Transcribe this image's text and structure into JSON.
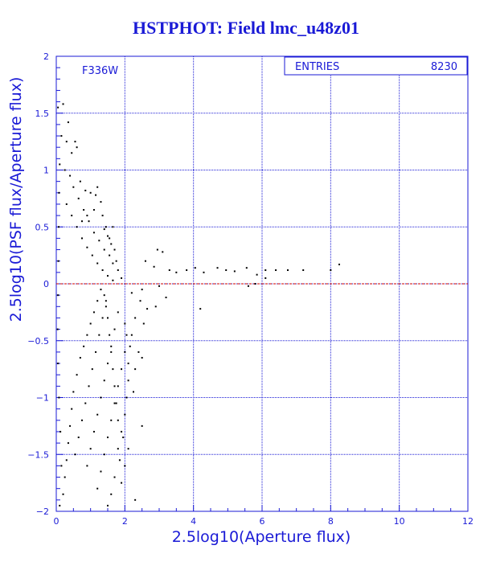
{
  "title": "HSTPHOT: Field lmc_u48z01",
  "chart_data": {
    "type": "scatter",
    "title": "HSTPHOT: Field lmc_u48z01",
    "xlabel": "2.5log10(Aperture flux)",
    "ylabel": "2.5log10(PSF flux/Aperture flux)",
    "xlim": [
      0,
      12
    ],
    "ylim": [
      -2,
      2
    ],
    "x_ticks": [
      "0",
      "2",
      "4",
      "6",
      "8",
      "10",
      "12"
    ],
    "y_ticks": [
      "-2",
      "-1.5",
      "-1",
      "-0.5",
      "0",
      "0.5",
      "1",
      "1.5",
      "2"
    ],
    "grid": true,
    "reference_line": {
      "y": 0,
      "color": "#cc0000",
      "style": "dashed"
    },
    "annotation": "F336W",
    "stats_box": {
      "label": "ENTRIES",
      "value": "8230"
    },
    "colors": {
      "axis": "#1a1ad6",
      "points": "#000000",
      "title": "#1a1ad6"
    },
    "points": [
      [
        0.05,
        1.55
      ],
      [
        0.2,
        1.58
      ],
      [
        0.35,
        1.42
      ],
      [
        0.15,
        1.3
      ],
      [
        0.3,
        1.25
      ],
      [
        0.45,
        1.15
      ],
      [
        0.1,
        1.05
      ],
      [
        0.25,
        1.0
      ],
      [
        0.55,
        1.25
      ],
      [
        0.6,
        1.2
      ],
      [
        0.4,
        0.95
      ],
      [
        0.7,
        0.9
      ],
      [
        0.85,
        0.82
      ],
      [
        1.0,
        0.8
      ],
      [
        1.15,
        0.78
      ],
      [
        1.2,
        0.85
      ],
      [
        1.3,
        0.72
      ],
      [
        1.1,
        0.65
      ],
      [
        0.9,
        0.6
      ],
      [
        0.75,
        0.55
      ],
      [
        1.35,
        0.6
      ],
      [
        1.45,
        0.5
      ],
      [
        1.5,
        0.42
      ],
      [
        1.6,
        0.35
      ],
      [
        1.4,
        0.3
      ],
      [
        1.7,
        0.3
      ],
      [
        1.55,
        0.25
      ],
      [
        1.65,
        0.18
      ],
      [
        1.8,
        0.12
      ],
      [
        1.9,
        0.05
      ],
      [
        2.6,
        0.2
      ],
      [
        2.95,
        0.3
      ],
      [
        3.1,
        0.28
      ],
      [
        2.85,
        0.15
      ],
      [
        3.3,
        0.12
      ],
      [
        3.5,
        0.1
      ],
      [
        3.8,
        0.12
      ],
      [
        4.05,
        0.14
      ],
      [
        4.3,
        0.1
      ],
      [
        4.7,
        0.14
      ],
      [
        4.95,
        0.12
      ],
      [
        5.2,
        0.11
      ],
      [
        5.55,
        0.14
      ],
      [
        5.85,
        0.08
      ],
      [
        6.1,
        0.12
      ],
      [
        6.4,
        0.12
      ],
      [
        6.75,
        0.12
      ],
      [
        7.2,
        0.12
      ],
      [
        8.0,
        0.12
      ],
      [
        8.25,
        0.17
      ],
      [
        5.8,
        0.0
      ],
      [
        5.6,
        -0.02
      ],
      [
        6.1,
        0.05
      ],
      [
        3.0,
        -0.02
      ],
      [
        2.5,
        -0.05
      ],
      [
        2.2,
        -0.08
      ],
      [
        2.45,
        -0.15
      ],
      [
        2.65,
        -0.22
      ],
      [
        2.9,
        -0.2
      ],
      [
        3.2,
        -0.12
      ],
      [
        4.2,
        -0.22
      ],
      [
        2.3,
        -0.3
      ],
      [
        2.55,
        -0.35
      ],
      [
        2.2,
        -0.45
      ],
      [
        2.4,
        -0.6
      ],
      [
        2.5,
        -0.65
      ],
      [
        2.3,
        -0.75
      ],
      [
        2.1,
        -0.85
      ],
      [
        2.25,
        -0.95
      ],
      [
        2.5,
        -1.25
      ],
      [
        2.1,
        -1.45
      ],
      [
        2.0,
        -1.6
      ],
      [
        2.3,
        -1.9
      ],
      [
        1.9,
        -1.75
      ],
      [
        1.85,
        -1.55
      ],
      [
        1.95,
        -1.35
      ],
      [
        1.8,
        -1.2
      ],
      [
        1.75,
        -1.05
      ],
      [
        1.7,
        -0.9
      ],
      [
        1.65,
        -0.75
      ],
      [
        1.6,
        -0.6
      ],
      [
        1.55,
        -0.45
      ],
      [
        1.5,
        -0.3
      ],
      [
        1.45,
        -0.2
      ],
      [
        1.4,
        -0.1
      ],
      [
        1.3,
        -0.05
      ],
      [
        1.2,
        -0.15
      ],
      [
        1.1,
        -0.25
      ],
      [
        1.0,
        -0.35
      ],
      [
        0.9,
        -0.45
      ],
      [
        0.8,
        -0.55
      ],
      [
        0.7,
        -0.65
      ],
      [
        0.6,
        -0.8
      ],
      [
        0.5,
        -0.95
      ],
      [
        0.45,
        -1.1
      ],
      [
        0.4,
        -1.25
      ],
      [
        0.35,
        -1.4
      ],
      [
        0.3,
        -1.55
      ],
      [
        0.25,
        -1.7
      ],
      [
        0.2,
        -1.85
      ],
      [
        0.1,
        -1.95
      ],
      [
        0.15,
        -1.6
      ],
      [
        0.12,
        -1.3
      ],
      [
        0.08,
        -1.0
      ],
      [
        0.05,
        -0.7
      ],
      [
        0.04,
        -0.4
      ],
      [
        0.05,
        -0.1
      ],
      [
        0.06,
        0.2
      ],
      [
        0.07,
        0.5
      ],
      [
        0.08,
        0.8
      ],
      [
        0.55,
        -1.5
      ],
      [
        0.65,
        -1.35
      ],
      [
        0.75,
        -1.2
      ],
      [
        0.85,
        -1.05
      ],
      [
        0.95,
        -0.9
      ],
      [
        1.05,
        -0.75
      ],
      [
        1.15,
        -0.6
      ],
      [
        1.25,
        -0.45
      ],
      [
        1.35,
        -0.3
      ],
      [
        1.45,
        -0.15
      ],
      [
        0.9,
        -1.6
      ],
      [
        1.0,
        -1.45
      ],
      [
        1.1,
        -1.3
      ],
      [
        1.2,
        -1.15
      ],
      [
        1.3,
        -1.0
      ],
      [
        1.4,
        -0.85
      ],
      [
        1.5,
        -0.7
      ],
      [
        1.6,
        -0.55
      ],
      [
        1.7,
        -0.4
      ],
      [
        1.8,
        -0.25
      ],
      [
        1.2,
        -1.8
      ],
      [
        1.3,
        -1.65
      ],
      [
        1.4,
        -1.5
      ],
      [
        1.5,
        -1.35
      ],
      [
        1.6,
        -1.2
      ],
      [
        1.7,
        -1.05
      ],
      [
        1.8,
        -0.9
      ],
      [
        1.9,
        -0.75
      ],
      [
        2.0,
        -0.6
      ],
      [
        2.05,
        -0.45
      ],
      [
        1.5,
        -1.95
      ],
      [
        1.6,
        -1.85
      ],
      [
        1.7,
        -1.7
      ],
      [
        1.8,
        -1.45
      ],
      [
        1.9,
        -1.3
      ],
      [
        2.0,
        -1.15
      ],
      [
        2.05,
        -1.0
      ],
      [
        2.1,
        -0.7
      ],
      [
        2.15,
        -0.55
      ],
      [
        2.0,
        -0.35
      ],
      [
        0.3,
        0.7
      ],
      [
        0.45,
        0.6
      ],
      [
        0.6,
        0.5
      ],
      [
        0.75,
        0.4
      ],
      [
        0.9,
        0.32
      ],
      [
        1.05,
        0.25
      ],
      [
        1.2,
        0.18
      ],
      [
        1.35,
        0.12
      ],
      [
        1.5,
        0.07
      ],
      [
        1.65,
        0.03
      ],
      [
        0.5,
        0.85
      ],
      [
        0.65,
        0.75
      ],
      [
        0.8,
        0.65
      ],
      [
        0.95,
        0.55
      ],
      [
        1.1,
        0.45
      ],
      [
        1.25,
        0.38
      ],
      [
        1.4,
        0.48
      ],
      [
        1.55,
        0.4
      ],
      [
        1.65,
        0.5
      ],
      [
        1.75,
        0.2
      ]
    ]
  }
}
